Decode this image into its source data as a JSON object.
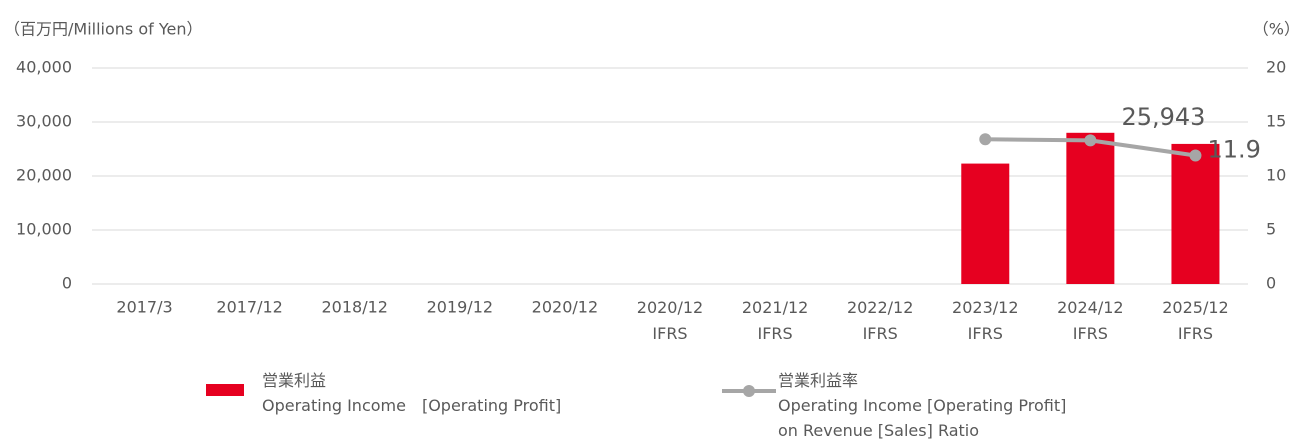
{
  "chart_data": {
    "type": "bar",
    "y_label": "（百万円/Millions of Yen）",
    "y2_label": "（%）",
    "categories": [
      "2017/3",
      "2017/12",
      "2018/12",
      "2019/12",
      "2020/12",
      "2020/12\nIFRS",
      "2021/12\nIFRS",
      "2022/12\nIFRS",
      "2023/12\nIFRS",
      "2024/12\nIFRS",
      "2025/12\nIFRS"
    ],
    "series": [
      {
        "name": "営業利益\nOperating Income　[Operating Profit]",
        "type": "bar",
        "color": "#e60020",
        "values": [
          null,
          null,
          null,
          null,
          null,
          null,
          null,
          null,
          22300,
          28000,
          25943
        ],
        "value_labels": [
          null,
          null,
          null,
          null,
          null,
          null,
          null,
          null,
          null,
          null,
          "25,943"
        ]
      },
      {
        "name": "営業利益率\nOperating Income [Operating Profit]\non Revenue [Sales] Ratio",
        "type": "line",
        "axis": "y2",
        "color": "#a6a6a6",
        "values": [
          null,
          null,
          null,
          null,
          null,
          null,
          null,
          null,
          13.4,
          13.3,
          11.9
        ],
        "value_labels": [
          null,
          null,
          null,
          null,
          null,
          null,
          null,
          null,
          null,
          null,
          "11.9"
        ]
      }
    ],
    "ylim": [
      0,
      40000
    ],
    "yticks": [
      {
        "value": 0,
        "label": "0"
      },
      {
        "value": 10000,
        "label": "10,000"
      },
      {
        "value": 20000,
        "label": "20,000"
      },
      {
        "value": 30000,
        "label": "30,000"
      },
      {
        "value": 40000,
        "label": "40,000"
      }
    ],
    "y2lim": [
      0,
      20
    ],
    "y2ticks": [
      0,
      5,
      10,
      15,
      20
    ],
    "grid": true
  }
}
